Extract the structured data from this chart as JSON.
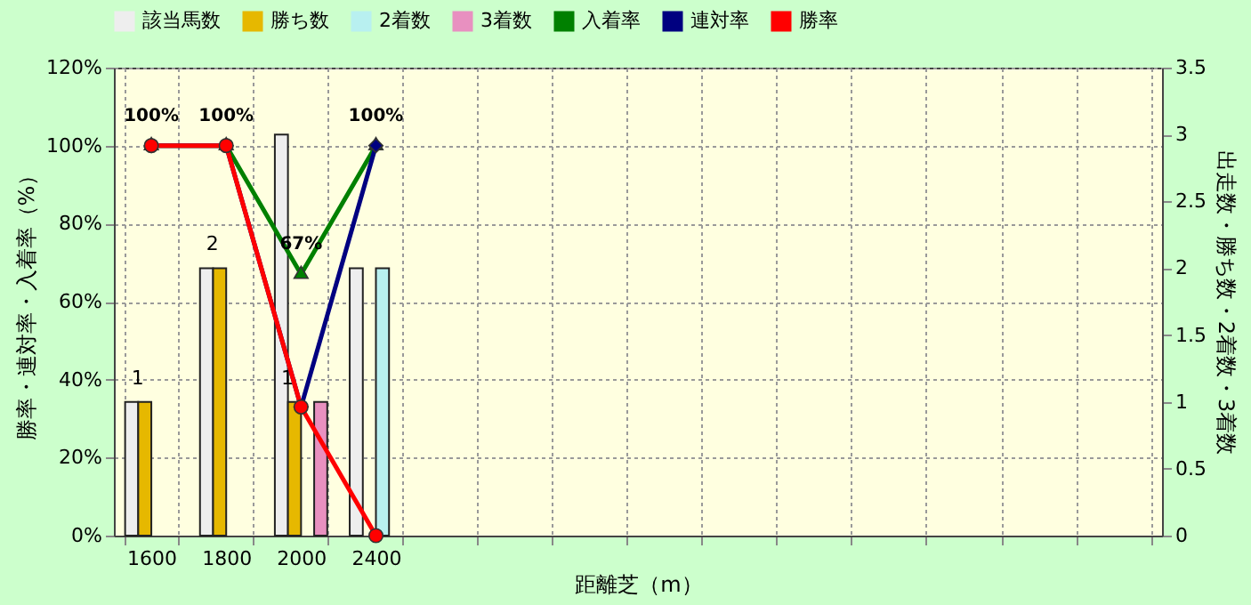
{
  "chart_data": {
    "type": "bar",
    "xlabel": "距離芝（m）",
    "ylabel": "勝率・連対率・入着率（%）",
    "y2label": "出走数・勝ち数・2着数・3着数",
    "categories": [
      "1600",
      "1800",
      "2000",
      "2400",
      null,
      null,
      null,
      null,
      null,
      null,
      null,
      null,
      null,
      null
    ],
    "series": [
      {
        "name": "該当馬数",
        "type": "bar",
        "axis": "y2",
        "color": "#eeeeee",
        "values": [
          1,
          2,
          3,
          2,
          null,
          null,
          null,
          null,
          null,
          null,
          null,
          null,
          null,
          null
        ]
      },
      {
        "name": "勝ち数",
        "type": "bar",
        "axis": "y2",
        "color": "#e6b800",
        "values": [
          1,
          2,
          1,
          0,
          null,
          null,
          null,
          null,
          null,
          null,
          null,
          null,
          null,
          null
        ],
        "value_labels": [
          "1",
          "2",
          "1",
          null,
          null,
          null,
          null,
          null,
          null,
          null,
          null,
          null,
          null,
          null
        ]
      },
      {
        "name": "2着数",
        "type": "bar",
        "axis": "y2",
        "color": "#b8f0f0",
        "values": [
          0,
          0,
          0,
          2,
          null,
          null,
          null,
          null,
          null,
          null,
          null,
          null,
          null,
          null
        ]
      },
      {
        "name": "3着数",
        "type": "bar",
        "axis": "y2",
        "color": "#e890c0",
        "values": [
          0,
          0,
          1,
          0,
          null,
          null,
          null,
          null,
          null,
          null,
          null,
          null,
          null,
          null
        ]
      },
      {
        "name": "入着率",
        "type": "line",
        "axis": "y",
        "color": "#008000",
        "marker": "triangle",
        "values": [
          100,
          100,
          67,
          100,
          null,
          null,
          null,
          null,
          null,
          null,
          null,
          null,
          null,
          null
        ],
        "value_labels": [
          "100%",
          "100%",
          "67%",
          "100%",
          null,
          null,
          null,
          null,
          null,
          null,
          null,
          null,
          null,
          null
        ]
      },
      {
        "name": "連対率",
        "type": "line",
        "axis": "y",
        "color": "#000080",
        "marker": "diamond",
        "values": [
          100,
          100,
          33,
          100,
          null,
          null,
          null,
          null,
          null,
          null,
          null,
          null,
          null,
          null
        ]
      },
      {
        "name": "勝率",
        "type": "line",
        "axis": "y",
        "color": "#ff0000",
        "marker": "circle",
        "values": [
          100,
          100,
          33,
          0,
          null,
          null,
          null,
          null,
          null,
          null,
          null,
          null,
          null,
          null
        ]
      }
    ],
    "ylim": [
      0,
      120
    ],
    "yticks": [
      {
        "value": 0,
        "label": "0%"
      },
      {
        "value": 20,
        "label": "20%"
      },
      {
        "value": 40,
        "label": "40%"
      },
      {
        "value": 60,
        "label": "60%"
      },
      {
        "value": 80,
        "label": "80%"
      },
      {
        "value": 100,
        "label": "100%"
      },
      {
        "value": 120,
        "label": "120%"
      }
    ],
    "y2lim": [
      0,
      3.5
    ],
    "y2ticks": [
      0,
      0.5,
      1,
      1.5,
      2,
      2.5,
      3,
      3.5
    ],
    "grid": true,
    "legend": "top",
    "line_style": "solid"
  }
}
